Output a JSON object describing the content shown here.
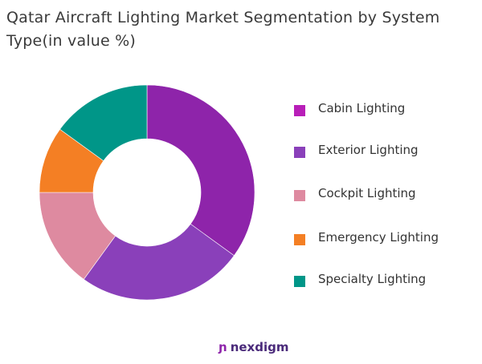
{
  "title": "Qatar Aircraft Lighting Market Segmentation by System Type(in value %)",
  "brand": "nexdigm",
  "chart_data": {
    "type": "pie",
    "donut": true,
    "title": "Qatar Aircraft Lighting Market Segmentation by System Type(in value %)",
    "categories": [
      "Cabin Lighting",
      "Exterior Lighting",
      "Cockpit Lighting",
      "Emergency Lighting",
      "Specialty Lighting"
    ],
    "values": [
      35,
      25,
      15,
      10,
      15
    ],
    "colors": [
      "#8E24AA",
      "#8A40BA",
      "#DE8AA0",
      "#F47F24",
      "#009688"
    ],
    "legend_colors": [
      "#B81FB8",
      "#8A40BA",
      "#DE8AA0",
      "#F47F24",
      "#009688"
    ],
    "legend_position": "right"
  }
}
